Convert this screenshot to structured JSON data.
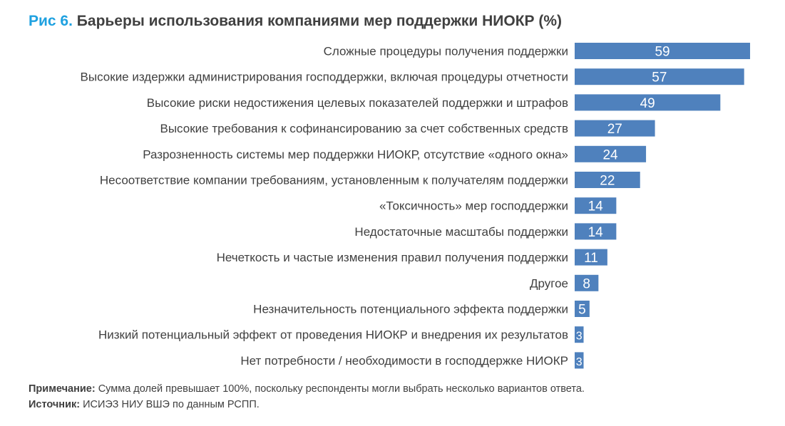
{
  "title": {
    "figure": "Рис 6.",
    "text": "Барьеры использования компаниями мер поддержки НИОКР (%)"
  },
  "chart_data": {
    "type": "bar",
    "orientation": "horizontal",
    "bar_color": "#4f81bd",
    "label_color": "#ffffff",
    "categories": [
      "Сложные процедуры получения поддержки",
      "Высокие издержки администрирования господдержки, включая процедуры отчетности",
      "Высокие риски недостижения целевых показателей поддержки и штрафов",
      "Высокие требования к софинансированию за счет собственных средств",
      "Разрозненность системы мер поддержки НИОКР, отсутствие «одного окна»",
      "Несоответствие компании требованиям, установленным к получателям поддержки",
      "«Токсичность» мер господдержки",
      "Недостаточные масштабы поддержки",
      "Нечеткость и частые изменения правил получения поддержки",
      "Другое",
      "Незначительность потенциального эффекта поддержки",
      "Низкий потенциальный эффект от проведения НИОКР и внедрения их результатов",
      "Нет потребности / необходимости в господдержке НИОКР"
    ],
    "values": [
      59,
      57,
      49,
      27,
      24,
      22,
      14,
      14,
      11,
      8,
      5,
      3,
      3
    ],
    "xlim": [
      0,
      60
    ],
    "grid": false,
    "legend": "none"
  },
  "notes": {
    "note_label": "Примечание:",
    "note_text": " Сумма долей превышает 100%, поскольку респонденты могли выбрать несколько вариантов ответа.",
    "source_label": "Источник:",
    "source_text": " ИСИЭЗ НИУ ВШЭ по данным РСПП."
  }
}
